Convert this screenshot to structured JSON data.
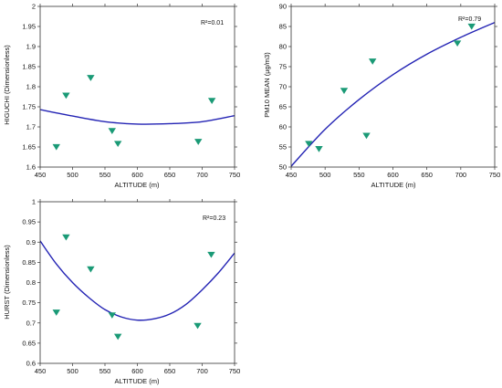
{
  "colors": {
    "curve": "#2323b4",
    "marker": "#1a9a76",
    "axis": "#333333"
  },
  "chart_data": [
    {
      "type": "scatter",
      "xlabel": "ALTITUDE (m)",
      "ylabel": "HIGUCHI (Dimensionless)",
      "annotation": "R²=0.01",
      "xlim": [
        450,
        750
      ],
      "ylim": [
        1.6,
        2.0
      ],
      "xticks": [
        "450",
        "500",
        "550",
        "600",
        "650",
        "700",
        "750"
      ],
      "yticks": [
        "1.6",
        "1.65",
        "1.7",
        "1.75",
        "1.8",
        "1.85",
        "1.9",
        "1.95",
        "2"
      ],
      "points": [
        {
          "x": 475,
          "y": 1.65
        },
        {
          "x": 490,
          "y": 1.778
        },
        {
          "x": 528,
          "y": 1.822
        },
        {
          "x": 561,
          "y": 1.69
        },
        {
          "x": 570,
          "y": 1.658
        },
        {
          "x": 694,
          "y": 1.663
        },
        {
          "x": 715,
          "y": 1.765
        }
      ],
      "fit": {
        "x": [
          450,
          500,
          550,
          600,
          650,
          700,
          750
        ],
        "y": [
          1.743,
          1.727,
          1.713,
          1.707,
          1.708,
          1.713,
          1.728
        ]
      }
    },
    {
      "type": "scatter",
      "xlabel": "ALTITUDE (m)",
      "ylabel": "PM10 MEAN (μg/m3)",
      "annotation": "R²=0.79",
      "xlim": [
        450,
        750
      ],
      "ylim": [
        50,
        90
      ],
      "xticks": [
        "450",
        "500",
        "550",
        "600",
        "650",
        "700",
        "750"
      ],
      "yticks": [
        "50",
        "55",
        "60",
        "65",
        "70",
        "75",
        "80",
        "85",
        "90"
      ],
      "points": [
        {
          "x": 476,
          "y": 55.8
        },
        {
          "x": 491,
          "y": 54.5
        },
        {
          "x": 528,
          "y": 69
        },
        {
          "x": 561,
          "y": 57.8
        },
        {
          "x": 570,
          "y": 76.3
        },
        {
          "x": 695,
          "y": 80.8
        },
        {
          "x": 716,
          "y": 85
        }
      ],
      "fit": {
        "x": [
          450,
          500,
          550,
          600,
          650,
          700,
          750
        ],
        "y": [
          50.2,
          59.4,
          66.8,
          73,
          78.1,
          82.3,
          86
        ]
      }
    },
    {
      "type": "scatter",
      "xlabel": "ALTITUDE (m)",
      "ylabel": "HURST (Dimensionless)",
      "annotation": "R²=0.23",
      "xlim": [
        450,
        750
      ],
      "ylim": [
        0.6,
        1.0
      ],
      "xticks": [
        "450",
        "500",
        "550",
        "600",
        "650",
        "700",
        "750"
      ],
      "yticks": [
        "0.6",
        "0.65",
        "0.7",
        "0.75",
        "0.8",
        "0.85",
        "0.9",
        "0.95",
        "1"
      ],
      "points": [
        {
          "x": 475,
          "y": 0.726
        },
        {
          "x": 490,
          "y": 0.912
        },
        {
          "x": 528,
          "y": 0.833
        },
        {
          "x": 561,
          "y": 0.719
        },
        {
          "x": 570,
          "y": 0.666
        },
        {
          "x": 693,
          "y": 0.693
        },
        {
          "x": 714,
          "y": 0.869
        }
      ],
      "fit": {
        "x": [
          450,
          475,
          500,
          525,
          550,
          575,
          600,
          625,
          650,
          675,
          700,
          725,
          750
        ],
        "y": [
          0.903,
          0.846,
          0.8,
          0.763,
          0.733,
          0.715,
          0.707,
          0.71,
          0.722,
          0.746,
          0.782,
          0.824,
          0.873
        ]
      }
    }
  ]
}
